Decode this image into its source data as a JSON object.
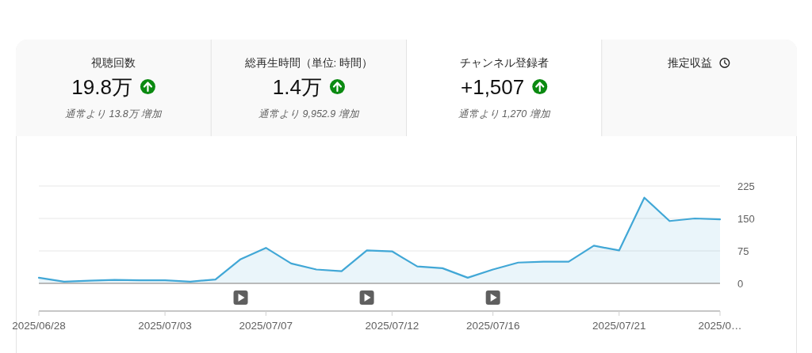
{
  "chart_data": [
    {
      "type": "other",
      "title": "視聴回数",
      "subtitle": "19.8万",
      "annotations": [
        "通常より 13.8万 増加"
      ]
    },
    {
      "type": "other",
      "title": "総再生時間（単位: 時間）",
      "subtitle": "1.4万",
      "annotations": [
        "通常より 9,952.9 増加"
      ]
    },
    {
      "type": "other",
      "title": "チャンネル登録者",
      "subtitle": "+1,507",
      "annotations": [
        "通常より 1,270 増加"
      ]
    },
    {
      "type": "other",
      "title": "推定収益"
    },
    {
      "type": "area",
      "x": [
        "2025-06-28",
        "2025-06-29",
        "2025-06-30",
        "2025-07-01",
        "2025-07-02",
        "2025-07-03",
        "2025-07-04",
        "2025-07-05",
        "2025-07-06",
        "2025-07-07",
        "2025-07-08",
        "2025-07-09",
        "2025-07-10",
        "2025-07-11",
        "2025-07-12",
        "2025-07-13",
        "2025-07-14",
        "2025-07-15",
        "2025-07-16",
        "2025-07-17",
        "2025-07-18",
        "2025-07-19",
        "2025-07-20",
        "2025-07-21",
        "2025-07-22",
        "2025-07-23",
        "2025-07-24",
        "2025-07-25"
      ],
      "series": [
        {
          "color": "#41a7d6",
          "values": [
            13,
            4,
            6,
            8,
            7,
            7,
            4,
            9,
            56,
            82,
            46,
            32,
            28,
            76,
            74,
            39,
            35,
            13,
            32,
            48,
            50,
            50,
            87,
            76,
            198,
            144,
            150,
            148
          ]
        }
      ],
      "xlim": [
        "2025-06-28",
        "2025-07-25"
      ],
      "xticks": [
        {
          "value": "2025-06-28",
          "label": "2025/06/28"
        },
        {
          "value": "2025-07-03",
          "label": "2025/07/03"
        },
        {
          "value": "2025-07-07",
          "label": "2025/07/07"
        },
        {
          "value": "2025-07-12",
          "label": "2025/07/12"
        },
        {
          "value": "2025-07-16",
          "label": "2025/07/16"
        },
        {
          "value": "2025-07-21",
          "label": "2025/07/21"
        },
        {
          "value": "2025-07-25",
          "label": "2025/0…"
        }
      ],
      "ylim": [
        0,
        225
      ],
      "yticks": [
        0,
        75,
        150,
        225
      ],
      "grid": "y"
    }
  ]
}
